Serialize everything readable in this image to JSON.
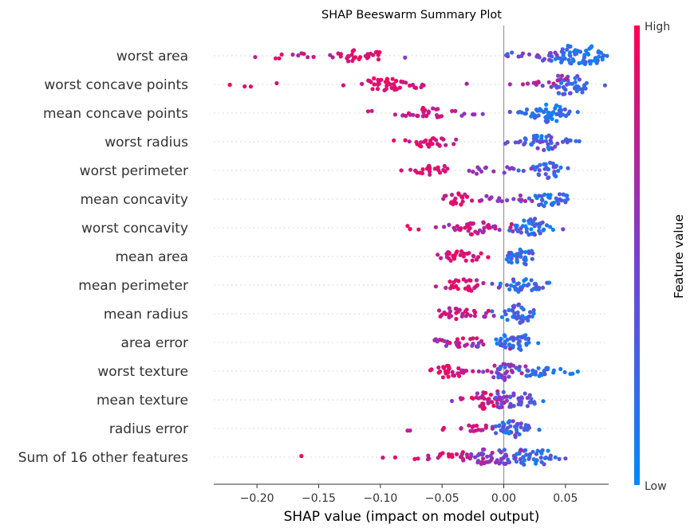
{
  "chart_data": {
    "type": "scatter",
    "title": "SHAP Beeswarm Summary Plot",
    "xlabel": "SHAP value (impact on model output)",
    "xlim": [
      -0.235,
      0.085
    ],
    "xticks": [
      -0.2,
      -0.15,
      -0.1,
      -0.05,
      0.0,
      0.05
    ],
    "xtick_labels": [
      "−0.20",
      "−0.15",
      "−0.10",
      "−0.05",
      "0.00",
      "0.05"
    ],
    "features": [
      "worst area",
      "worst concave points",
      "mean concave points",
      "worst radius",
      "worst perimeter",
      "mean concavity",
      "worst concavity",
      "mean area",
      "mean perimeter",
      "mean radius",
      "area error",
      "worst texture",
      "mean texture",
      "radius error",
      "Sum of 16 other features"
    ],
    "colorbar": {
      "label": "Feature value",
      "high": "High",
      "low": "Low"
    },
    "colors": {
      "low": "#008afb",
      "high": "#ff0051",
      "baseline": "#999999",
      "grid": "#cccccc",
      "text": "#333333"
    },
    "points": [
      {
        "feature": "worst area",
        "clusters": [
          {
            "c": 0.062,
            "s": 0.011,
            "n": 60,
            "lo": 0.0,
            "hi": 0.3
          },
          {
            "c": 0.03,
            "s": 0.014,
            "n": 22,
            "lo": 0.25,
            "hi": 0.6
          },
          {
            "c": -0.115,
            "s": 0.01,
            "n": 26,
            "lo": 0.8,
            "hi": 1.0
          },
          {
            "c": -0.15,
            "s": 0.02,
            "n": 12,
            "lo": 0.6,
            "hi": 0.9
          }
        ],
        "extra": [
          [
            -0.182,
            0.9
          ],
          [
            -0.18,
            0.85
          ],
          [
            -0.08,
            0.55
          ],
          [
            0.003,
            0.2
          ],
          [
            0.08,
            0.05
          ]
        ]
      },
      {
        "feature": "worst concave points",
        "clusters": [
          {
            "c": 0.053,
            "s": 0.01,
            "n": 45,
            "lo": 0.1,
            "hi": 0.5
          },
          {
            "c": 0.03,
            "s": 0.012,
            "n": 12,
            "lo": 0.6,
            "hi": 0.85
          },
          {
            "c": -0.095,
            "s": 0.009,
            "n": 30,
            "lo": 0.8,
            "hi": 1.0
          },
          {
            "c": -0.075,
            "s": 0.008,
            "n": 10,
            "lo": 0.7,
            "hi": 0.9
          }
        ],
        "extra": [
          [
            -0.222,
            1.0
          ],
          [
            -0.21,
            0.95
          ],
          [
            -0.205,
            0.9
          ],
          [
            -0.184,
            0.85
          ],
          [
            -0.13,
            0.85
          ],
          [
            -0.115,
            0.8
          ],
          [
            -0.03,
            0.7
          ],
          [
            0.005,
            0.65
          ],
          [
            0.082,
            0.3
          ]
        ]
      },
      {
        "feature": "mean concave points",
        "clusters": [
          {
            "c": 0.037,
            "s": 0.009,
            "n": 50,
            "lo": 0.0,
            "hi": 0.35
          },
          {
            "c": -0.063,
            "s": 0.008,
            "n": 22,
            "lo": 0.7,
            "hi": 1.0
          },
          {
            "c": -0.04,
            "s": 0.012,
            "n": 8,
            "lo": 0.55,
            "hi": 0.8
          }
        ],
        "extra": [
          [
            -0.11,
            0.8
          ],
          [
            -0.107,
            0.8
          ],
          [
            -0.088,
            0.75
          ],
          [
            -0.082,
            0.7
          ],
          [
            -0.032,
            0.6
          ],
          [
            -0.017,
            0.5
          ],
          [
            0.005,
            0.4
          ],
          [
            0.013,
            0.2
          ],
          [
            0.06,
            0.2
          ]
        ]
      },
      {
        "feature": "worst radius",
        "clusters": [
          {
            "c": 0.036,
            "s": 0.012,
            "n": 45,
            "lo": 0.05,
            "hi": 0.55
          },
          {
            "c": -0.058,
            "s": 0.01,
            "n": 28,
            "lo": 0.7,
            "hi": 1.0
          }
        ],
        "extra": [
          [
            0.003,
            0.4
          ],
          [
            0.012,
            0.45
          ],
          [
            0.053,
            0.3
          ]
        ]
      },
      {
        "feature": "worst perimeter",
        "clusters": [
          {
            "c": 0.035,
            "s": 0.008,
            "n": 30,
            "lo": 0.05,
            "hi": 0.45
          },
          {
            "c": -0.06,
            "s": 0.008,
            "n": 22,
            "lo": 0.75,
            "hi": 1.0
          },
          {
            "c": -0.01,
            "s": 0.012,
            "n": 12,
            "lo": 0.45,
            "hi": 0.7
          }
        ],
        "extra": [
          [
            -0.083,
            0.9
          ],
          [
            -0.048,
            0.85
          ],
          [
            -0.025,
            0.65
          ],
          [
            -0.022,
            0.6
          ],
          [
            0.008,
            0.5
          ],
          [
            0.016,
            0.4
          ],
          [
            0.052,
            0.3
          ]
        ]
      },
      {
        "feature": "mean concavity",
        "clusters": [
          {
            "c": 0.035,
            "s": 0.009,
            "n": 35,
            "lo": 0.0,
            "hi": 0.4
          },
          {
            "c": -0.037,
            "s": 0.01,
            "n": 22,
            "lo": 0.7,
            "hi": 1.0
          },
          {
            "c": 0.005,
            "s": 0.009,
            "n": 14,
            "lo": 0.45,
            "hi": 0.7
          }
        ],
        "extra": [
          [
            -0.018,
            0.6
          ],
          [
            -0.014,
            0.6
          ],
          [
            0.05,
            0.3
          ]
        ]
      },
      {
        "feature": "worst concavity",
        "clusters": [
          {
            "c": 0.024,
            "s": 0.008,
            "n": 40,
            "lo": 0.0,
            "hi": 0.45
          },
          {
            "c": -0.022,
            "s": 0.014,
            "n": 40,
            "lo": 0.55,
            "hi": 0.95
          }
        ],
        "extra": [
          [
            -0.076,
            1.0
          ],
          [
            -0.078,
            0.95
          ],
          [
            -0.069,
            0.9
          ],
          [
            -0.055,
            0.7
          ],
          [
            0.048,
            0.5
          ],
          [
            0.025,
            0.35
          ]
        ]
      },
      {
        "feature": "mean area",
        "clusters": [
          {
            "c": 0.013,
            "s": 0.007,
            "n": 34,
            "lo": 0.0,
            "hi": 0.45
          },
          {
            "c": -0.036,
            "s": 0.008,
            "n": 30,
            "lo": 0.7,
            "hi": 1.0
          }
        ],
        "extra": [
          [
            -0.051,
            0.75
          ],
          [
            -0.046,
            0.75
          ],
          [
            -0.022,
            0.85
          ]
        ]
      },
      {
        "feature": "mean perimeter",
        "clusters": [
          {
            "c": 0.012,
            "s": 0.008,
            "n": 38,
            "lo": 0.0,
            "hi": 0.5
          },
          {
            "c": -0.034,
            "s": 0.007,
            "n": 26,
            "lo": 0.7,
            "hi": 1.0
          }
        ],
        "extra": [
          [
            -0.047,
            0.75
          ],
          [
            -0.022,
            0.7
          ],
          [
            -0.004,
            0.55
          ]
        ]
      },
      {
        "feature": "mean radius",
        "clusters": [
          {
            "c": 0.011,
            "s": 0.007,
            "n": 38,
            "lo": 0.0,
            "hi": 0.5
          },
          {
            "c": -0.034,
            "s": 0.009,
            "n": 28,
            "lo": 0.65,
            "hi": 1.0
          }
        ],
        "extra": [
          [
            -0.05,
            0.8
          ],
          [
            -0.016,
            0.6
          ],
          [
            -0.008,
            0.6
          ]
        ]
      },
      {
        "feature": "area error",
        "clusters": [
          {
            "c": 0.007,
            "s": 0.009,
            "n": 42,
            "lo": 0.0,
            "hi": 0.45
          },
          {
            "c": -0.032,
            "s": 0.012,
            "n": 30,
            "lo": 0.4,
            "hi": 0.95
          }
        ],
        "extra": [
          [
            -0.055,
            0.6
          ],
          [
            -0.048,
            0.55
          ],
          [
            0.02,
            0.3
          ]
        ]
      },
      {
        "feature": "worst texture",
        "clusters": [
          {
            "c": 0.0,
            "s": 0.008,
            "n": 30,
            "lo": 0.35,
            "hi": 0.75
          },
          {
            "c": -0.04,
            "s": 0.012,
            "n": 30,
            "lo": 0.7,
            "hi": 1.0
          },
          {
            "c": 0.03,
            "s": 0.015,
            "n": 28,
            "lo": 0.05,
            "hi": 0.4
          }
        ],
        "extra": [
          [
            0.06,
            0.05
          ],
          [
            0.054,
            0.1
          ],
          [
            0.046,
            0.1
          ]
        ]
      },
      {
        "feature": "mean texture",
        "clusters": [
          {
            "c": -0.015,
            "s": 0.01,
            "n": 40,
            "lo": 0.6,
            "hi": 1.0
          },
          {
            "c": 0.008,
            "s": 0.01,
            "n": 36,
            "lo": 0.2,
            "hi": 0.6
          }
        ],
        "extra": [
          [
            -0.042,
            0.5
          ],
          [
            -0.035,
            0.8
          ],
          [
            0.032,
            0.1
          ],
          [
            0.025,
            0.2
          ]
        ]
      },
      {
        "feature": "radius error",
        "clusters": [
          {
            "c": 0.004,
            "s": 0.008,
            "n": 40,
            "lo": 0.0,
            "hi": 0.55
          },
          {
            "c": -0.025,
            "s": 0.01,
            "n": 18,
            "lo": 0.6,
            "hi": 1.0
          }
        ],
        "extra": [
          [
            -0.078,
            0.75
          ],
          [
            -0.076,
            0.7
          ],
          [
            0.018,
            0.25
          ]
        ]
      },
      {
        "feature": "Sum of 16 other features",
        "clusters": [
          {
            "c": 0.022,
            "s": 0.012,
            "n": 50,
            "lo": 0.0,
            "hi": 0.4
          },
          {
            "c": -0.01,
            "s": 0.012,
            "n": 40,
            "lo": 0.35,
            "hi": 0.75
          },
          {
            "c": -0.045,
            "s": 0.012,
            "n": 22,
            "lo": 0.6,
            "hi": 1.0
          }
        ],
        "extra": [
          [
            -0.164,
            1.0
          ],
          [
            -0.098,
            0.8
          ],
          [
            -0.088,
            0.9
          ],
          [
            0.05,
            0.4
          ],
          [
            0.045,
            0.3
          ]
        ]
      }
    ]
  }
}
